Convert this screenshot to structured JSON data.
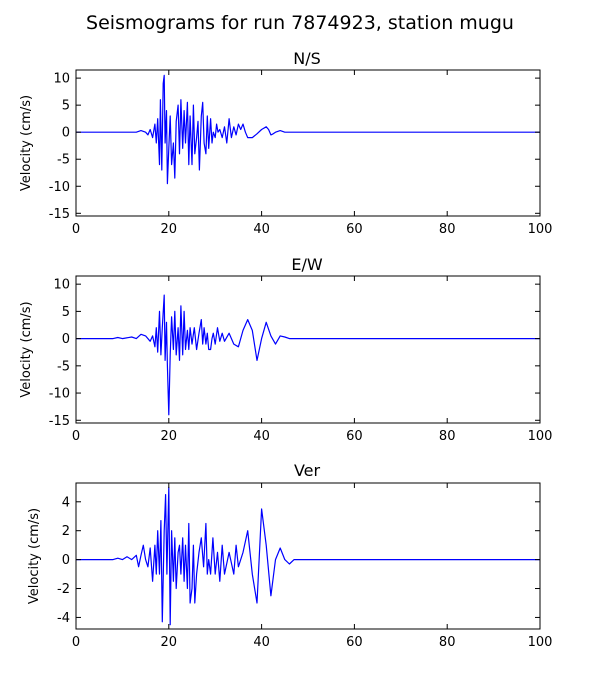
{
  "title": "Seismograms for run 7874923, station mugu",
  "chart_data": [
    {
      "type": "line",
      "title": "N/S",
      "ylabel": "Velocity (cm/s)",
      "xlim": [
        0,
        100
      ],
      "ylim": [
        -15.5,
        11.5
      ],
      "xticks": [
        0,
        20,
        40,
        60,
        80,
        100
      ],
      "yticks": [
        10,
        5,
        0,
        -5,
        -10,
        -15
      ],
      "series": [
        {
          "color": "#0000ff",
          "points": [
            [
              0,
              0
            ],
            [
              10,
              0
            ],
            [
              13,
              0
            ],
            [
              14,
              0.3
            ],
            [
              15,
              0
            ],
            [
              15.5,
              -0.5
            ],
            [
              16,
              0.5
            ],
            [
              16.5,
              -1
            ],
            [
              17,
              1.5
            ],
            [
              17.3,
              -2
            ],
            [
              17.6,
              2.5
            ],
            [
              18,
              -6
            ],
            [
              18.2,
              6
            ],
            [
              18.5,
              -7
            ],
            [
              18.8,
              9
            ],
            [
              19,
              10.5
            ],
            [
              19.2,
              -2
            ],
            [
              19.5,
              4
            ],
            [
              19.7,
              -9.5
            ],
            [
              20,
              -3
            ],
            [
              20.3,
              3
            ],
            [
              20.6,
              -6
            ],
            [
              21,
              -2
            ],
            [
              21.3,
              -8.5
            ],
            [
              21.6,
              2
            ],
            [
              22,
              5
            ],
            [
              22.3,
              -4
            ],
            [
              22.6,
              6
            ],
            [
              23,
              -3
            ],
            [
              23.3,
              4
            ],
            [
              23.6,
              -2
            ],
            [
              24,
              5.5
            ],
            [
              24.3,
              -6
            ],
            [
              24.6,
              3
            ],
            [
              25,
              -6
            ],
            [
              25.3,
              5
            ],
            [
              25.6,
              -4
            ],
            [
              26,
              -1
            ],
            [
              26.3,
              2
            ],
            [
              26.6,
              -7
            ],
            [
              27,
              3
            ],
            [
              27.3,
              5.5
            ],
            [
              27.6,
              -2
            ],
            [
              28,
              -4
            ],
            [
              28.3,
              3
            ],
            [
              28.6,
              -3
            ],
            [
              29,
              2.5
            ],
            [
              29.3,
              -2
            ],
            [
              29.6,
              0
            ],
            [
              30,
              -1
            ],
            [
              30.3,
              1.5
            ],
            [
              30.6,
              0
            ],
            [
              31,
              0.5
            ],
            [
              31.5,
              -1
            ],
            [
              32,
              1
            ],
            [
              32.5,
              -2
            ],
            [
              33,
              2.5
            ],
            [
              33.5,
              -1
            ],
            [
              34,
              1
            ],
            [
              34.5,
              -0.5
            ],
            [
              35,
              1.5
            ],
            [
              35.5,
              0.5
            ],
            [
              36,
              1.5
            ],
            [
              36.5,
              0
            ],
            [
              37,
              -1
            ],
            [
              38,
              -1
            ],
            [
              39,
              -0.3
            ],
            [
              40,
              0.5
            ],
            [
              41,
              1
            ],
            [
              41.5,
              0.5
            ],
            [
              42,
              -0.5
            ],
            [
              42.5,
              -0.3
            ],
            [
              43,
              0
            ],
            [
              44,
              0.3
            ],
            [
              45,
              0
            ],
            [
              46,
              0
            ],
            [
              48,
              0
            ],
            [
              50,
              0
            ],
            [
              60,
              0
            ],
            [
              80,
              0
            ],
            [
              100,
              0
            ]
          ]
        }
      ]
    },
    {
      "type": "line",
      "title": "E/W",
      "ylabel": "Velocity (cm/s)",
      "xlim": [
        0,
        100
      ],
      "ylim": [
        -15.5,
        11.5
      ],
      "xticks": [
        0,
        20,
        40,
        60,
        80,
        100
      ],
      "yticks": [
        10,
        5,
        0,
        -5,
        -10,
        -15
      ],
      "series": [
        {
          "color": "#0000ff",
          "points": [
            [
              0,
              0
            ],
            [
              8,
              0
            ],
            [
              9,
              0.2
            ],
            [
              10,
              0
            ],
            [
              12,
              0.3
            ],
            [
              13,
              0
            ],
            [
              14,
              0.8
            ],
            [
              15,
              0.5
            ],
            [
              16,
              -0.5
            ],
            [
              16.5,
              0.5
            ],
            [
              17,
              -1.5
            ],
            [
              17.3,
              2
            ],
            [
              17.6,
              -2.5
            ],
            [
              18,
              5
            ],
            [
              18.3,
              -3
            ],
            [
              18.6,
              2
            ],
            [
              19,
              8
            ],
            [
              19.2,
              -4
            ],
            [
              19.5,
              3
            ],
            [
              19.7,
              -5
            ],
            [
              20,
              -14
            ],
            [
              20.3,
              -3
            ],
            [
              20.6,
              4
            ],
            [
              21,
              -2
            ],
            [
              21.3,
              5
            ],
            [
              21.6,
              -3
            ],
            [
              22,
              2
            ],
            [
              22.3,
              -4
            ],
            [
              22.6,
              6
            ],
            [
              23,
              -3
            ],
            [
              23.3,
              5
            ],
            [
              23.6,
              -2
            ],
            [
              24,
              1.5
            ],
            [
              24.3,
              -2
            ],
            [
              24.6,
              2
            ],
            [
              25,
              -1
            ],
            [
              25.5,
              2
            ],
            [
              26,
              -2
            ],
            [
              26.5,
              1
            ],
            [
              27,
              3.5
            ],
            [
              27.3,
              -1
            ],
            [
              27.6,
              2
            ],
            [
              28,
              -1
            ],
            [
              28.3,
              1
            ],
            [
              28.6,
              -2
            ],
            [
              29,
              -2
            ],
            [
              29.3,
              0
            ],
            [
              29.6,
              1
            ],
            [
              30,
              -1
            ],
            [
              30.5,
              2
            ],
            [
              31,
              -0.5
            ],
            [
              31.5,
              1
            ],
            [
              32,
              -0.5
            ],
            [
              33,
              1
            ],
            [
              34,
              -1
            ],
            [
              35,
              -1.5
            ],
            [
              36,
              1.5
            ],
            [
              37,
              3.5
            ],
            [
              38,
              1.5
            ],
            [
              39,
              -4
            ],
            [
              40,
              0
            ],
            [
              41,
              3
            ],
            [
              42,
              0.5
            ],
            [
              43,
              -1
            ],
            [
              44,
              0.5
            ],
            [
              45,
              0.3
            ],
            [
              46,
              0
            ],
            [
              48,
              0
            ],
            [
              50,
              0
            ],
            [
              60,
              0
            ],
            [
              80,
              0
            ],
            [
              100,
              0
            ]
          ]
        }
      ]
    },
    {
      "type": "line",
      "title": "Ver",
      "ylabel": "Velocity (cm/s)",
      "xlim": [
        0,
        100
      ],
      "ylim": [
        -4.8,
        5.3
      ],
      "xticks": [
        0,
        20,
        40,
        60,
        80,
        100
      ],
      "yticks": [
        4,
        2,
        0,
        -2,
        -4
      ],
      "series": [
        {
          "color": "#0000ff",
          "points": [
            [
              0,
              0
            ],
            [
              8,
              0
            ],
            [
              9,
              0.1
            ],
            [
              10,
              0
            ],
            [
              11,
              0.2
            ],
            [
              12,
              0
            ],
            [
              13,
              0.3
            ],
            [
              13.5,
              -0.5
            ],
            [
              14,
              0.3
            ],
            [
              14.5,
              1
            ],
            [
              15,
              0
            ],
            [
              15.5,
              -0.5
            ],
            [
              16,
              0.8
            ],
            [
              16.5,
              -1.5
            ],
            [
              17,
              1
            ],
            [
              17.3,
              -1
            ],
            [
              17.6,
              2
            ],
            [
              18,
              -1
            ],
            [
              18.3,
              2.7
            ],
            [
              18.6,
              -4.3
            ],
            [
              19,
              2
            ],
            [
              19.3,
              4.5
            ],
            [
              19.6,
              -1
            ],
            [
              20,
              5
            ],
            [
              20.3,
              -4.5
            ],
            [
              20.6,
              2
            ],
            [
              21,
              -1.5
            ],
            [
              21.3,
              1.5
            ],
            [
              21.6,
              -2
            ],
            [
              22,
              0.5
            ],
            [
              22.3,
              1
            ],
            [
              22.6,
              -1
            ],
            [
              23,
              1.5
            ],
            [
              23.3,
              -1.5
            ],
            [
              23.6,
              1
            ],
            [
              24,
              -2
            ],
            [
              24.3,
              2.5
            ],
            [
              24.6,
              -3
            ],
            [
              25,
              -2
            ],
            [
              25.3,
              1
            ],
            [
              25.6,
              -3
            ],
            [
              26,
              -1
            ],
            [
              26.5,
              0.5
            ],
            [
              27,
              1.5
            ],
            [
              27.5,
              -0.5
            ],
            [
              28,
              2.5
            ],
            [
              28.3,
              -1
            ],
            [
              28.6,
              0
            ],
            [
              29,
              -1
            ],
            [
              29.5,
              1.5
            ],
            [
              30,
              -1
            ],
            [
              30.5,
              0.5
            ],
            [
              31,
              -1.5
            ],
            [
              31.5,
              1
            ],
            [
              32,
              -1
            ],
            [
              33,
              0.5
            ],
            [
              34,
              -1
            ],
            [
              34.5,
              1
            ],
            [
              35,
              -0.5
            ],
            [
              36,
              0.5
            ],
            [
              37,
              2
            ],
            [
              38,
              -1
            ],
            [
              39,
              -3
            ],
            [
              40,
              3.5
            ],
            [
              41,
              1
            ],
            [
              42,
              -2.5
            ],
            [
              43,
              0
            ],
            [
              44,
              0.8
            ],
            [
              45,
              0
            ],
            [
              46,
              -0.3
            ],
            [
              47,
              0
            ],
            [
              48,
              0
            ],
            [
              50,
              0
            ],
            [
              60,
              0
            ],
            [
              80,
              0
            ],
            [
              100,
              0
            ]
          ]
        }
      ]
    }
  ]
}
